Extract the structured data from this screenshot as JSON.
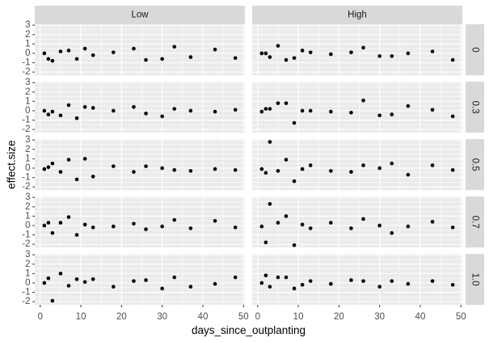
{
  "chart_data": {
    "type": "scatter",
    "xlabel": "days_since_outplanting",
    "ylabel": "effect.size",
    "xlim": [
      -1.35,
      50.35
    ],
    "ylim": [
      -2.35,
      3.1
    ],
    "x_ticks": [
      0,
      10,
      20,
      30,
      40,
      50
    ],
    "y_ticks": [
      -2,
      -1,
      0,
      1,
      2,
      3
    ],
    "grid": true,
    "legend": "none",
    "facet_cols": [
      "Low",
      "High"
    ],
    "facet_rows": [
      "0",
      "0.3",
      "0.5",
      "0.7",
      "1.0"
    ],
    "x": [
      1,
      2,
      3,
      5,
      7,
      9,
      11,
      13,
      18,
      23,
      26,
      30,
      33,
      37,
      43,
      48
    ],
    "panels": [
      {
        "row": "0",
        "col": "Low",
        "y": [
          0.0,
          -0.6,
          -0.8,
          0.2,
          0.3,
          -0.6,
          0.5,
          -0.2,
          0.1,
          0.5,
          -0.7,
          -0.6,
          0.7,
          -0.4,
          0.4,
          -0.5
        ]
      },
      {
        "row": "0",
        "col": "High",
        "y": [
          0.0,
          0.0,
          -0.4,
          0.8,
          -0.7,
          -0.5,
          0.3,
          0.1,
          -0.1,
          0.1,
          0.6,
          -0.3,
          -0.3,
          0.0,
          0.2,
          -0.7
        ]
      },
      {
        "row": "0.3",
        "col": "Low",
        "y": [
          0.0,
          -0.4,
          -0.1,
          -0.5,
          0.6,
          -0.8,
          0.4,
          0.3,
          0.0,
          0.4,
          -0.3,
          -0.6,
          0.2,
          0.0,
          -0.1,
          0.1
        ]
      },
      {
        "row": "0.3",
        "col": "High",
        "y": [
          -0.1,
          0.2,
          0.2,
          0.8,
          0.8,
          -1.3,
          0.0,
          0.0,
          -0.1,
          -0.2,
          1.1,
          -0.5,
          -0.4,
          0.5,
          0.1,
          -0.6
        ]
      },
      {
        "row": "0.5",
        "col": "Low",
        "y": [
          -0.1,
          0.1,
          0.5,
          -0.4,
          0.9,
          -1.2,
          1.0,
          -0.9,
          0.2,
          -0.4,
          0.2,
          0.0,
          -0.2,
          -0.3,
          -0.1,
          -0.2
        ]
      },
      {
        "row": "0.5",
        "col": "High",
        "y": [
          -0.1,
          -0.5,
          2.8,
          -0.3,
          0.9,
          -1.4,
          -0.1,
          0.3,
          -0.3,
          -0.4,
          0.3,
          0.0,
          0.5,
          -0.7,
          0.3,
          -0.2
        ]
      },
      {
        "row": "0.7",
        "col": "Low",
        "y": [
          0.0,
          0.3,
          -0.8,
          0.3,
          0.9,
          -1.0,
          0.1,
          -0.2,
          -0.1,
          0.2,
          -0.4,
          -0.1,
          0.6,
          -0.3,
          0.5,
          -0.2
        ]
      },
      {
        "row": "0.7",
        "col": "High",
        "y": [
          -0.1,
          -1.8,
          2.3,
          0.3,
          1.0,
          -2.1,
          0.1,
          -0.3,
          0.3,
          -0.3,
          0.7,
          0.0,
          -0.8,
          -0.1,
          0.4,
          -0.2
        ]
      },
      {
        "row": "1.0",
        "col": "Low",
        "y": [
          0.0,
          0.5,
          -1.9,
          1.0,
          -0.3,
          0.4,
          0.1,
          0.4,
          -0.4,
          0.2,
          0.3,
          -0.6,
          0.6,
          -0.4,
          -0.1,
          0.6
        ]
      },
      {
        "row": "1.0",
        "col": "High",
        "y": [
          0.0,
          0.8,
          -0.4,
          0.6,
          0.6,
          -0.6,
          -0.2,
          0.2,
          -0.1,
          0.3,
          0.2,
          -0.4,
          0.2,
          -0.1,
          0.2,
          -0.2
        ]
      }
    ]
  },
  "colors": {
    "panel_bg": "#EBEBEB",
    "strip_bg": "#D9D9D9",
    "grid": "#FFFFFF",
    "point": "#000000",
    "axis_text": "#4D4D4D",
    "axis_tick": "#333333",
    "strip_text": "#1A1A1A",
    "axis_title": "#000000"
  }
}
